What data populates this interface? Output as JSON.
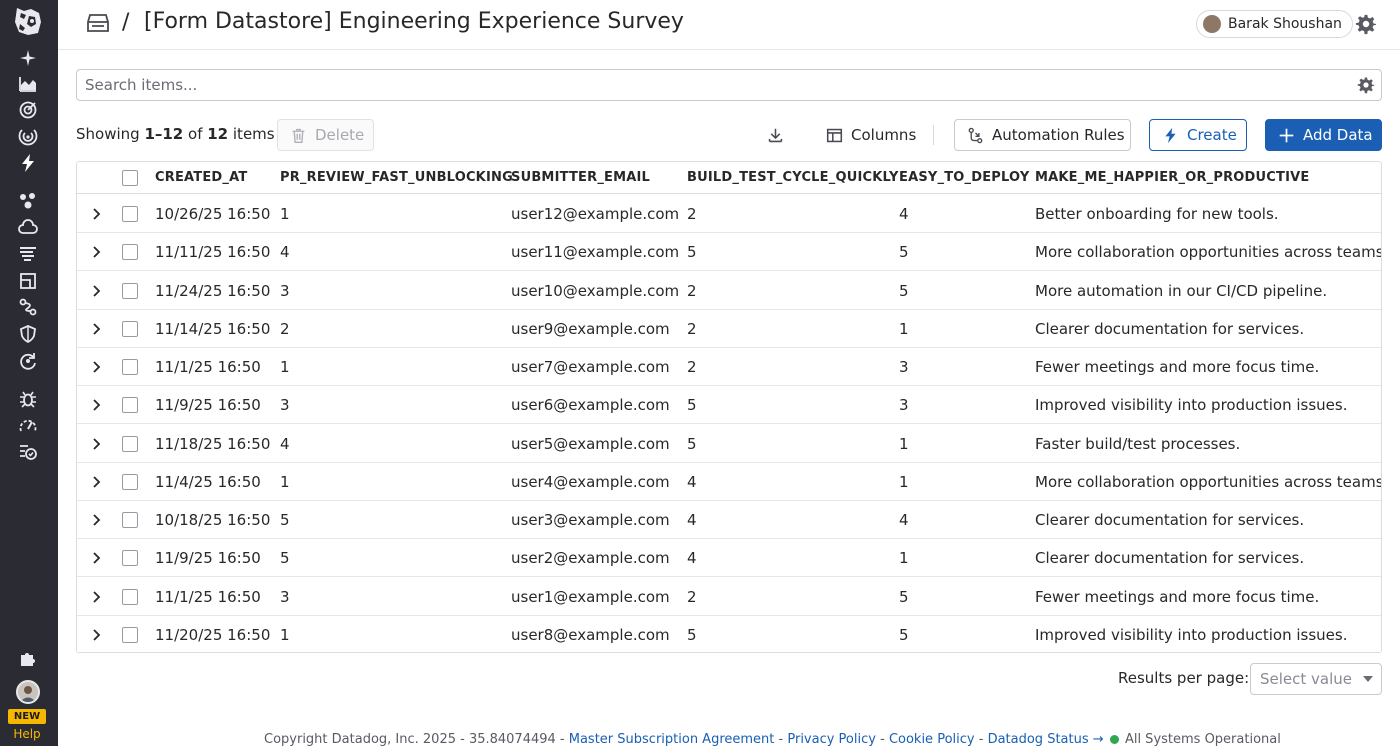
{
  "header": {
    "separator": "/",
    "title": "[Form Datastore] Engineering Experience Survey",
    "user_name": "Barak Shoushan"
  },
  "sidebar": {
    "new_badge": "NEW",
    "help_label": "Help",
    "icons": [
      "sparkle-icon",
      "area-chart-icon",
      "target-icon",
      "radar-icon",
      "bolt-icon",
      "network-icon",
      "cloud-icon",
      "logs-icon",
      "apm-icon",
      "route-icon",
      "shield-icon",
      "refresh-icon",
      "bug-icon",
      "speedometer-icon",
      "list-check-icon",
      "puzzle-icon"
    ]
  },
  "search": {
    "placeholder": "Search items..."
  },
  "toolbar": {
    "showing_prefix": "Showing ",
    "showing_range": "1–12",
    "showing_of": " of ",
    "showing_total": "12",
    "showing_suffix": " items",
    "delete_label": "Delete",
    "columns_label": "Columns",
    "automation_label": "Automation Rules",
    "create_label": "Create",
    "add_label": "Add Data"
  },
  "table": {
    "columns": [
      "CREATED_AT",
      "PR_REVIEW_FAST_UNBLOCKING",
      "SUBMITTER_EMAIL",
      "BUILD_TEST_CYCLE_QUICKLY",
      "EASY_TO_DEPLOY",
      "MAKE_ME_HAPPIER_OR_PRODUCTIVE"
    ],
    "rows": [
      [
        "10/26/25 16:50",
        "1",
        "user12@example.com",
        "2",
        "4",
        "Better onboarding for new tools."
      ],
      [
        "11/11/25 16:50",
        "4",
        "user11@example.com",
        "5",
        "5",
        "More collaboration opportunities across teams."
      ],
      [
        "11/24/25 16:50",
        "3",
        "user10@example.com",
        "2",
        "5",
        "More automation in our CI/CD pipeline."
      ],
      [
        "11/14/25 16:50",
        "2",
        "user9@example.com",
        "2",
        "1",
        "Clearer documentation for services."
      ],
      [
        "11/1/25 16:50",
        "1",
        "user7@example.com",
        "2",
        "3",
        "Fewer meetings and more focus time."
      ],
      [
        "11/9/25 16:50",
        "3",
        "user6@example.com",
        "5",
        "3",
        "Improved visibility into production issues."
      ],
      [
        "11/18/25 16:50",
        "4",
        "user5@example.com",
        "5",
        "1",
        "Faster build/test processes."
      ],
      [
        "11/4/25 16:50",
        "1",
        "user4@example.com",
        "4",
        "1",
        "More collaboration opportunities across teams."
      ],
      [
        "10/18/25 16:50",
        "5",
        "user3@example.com",
        "4",
        "4",
        "Clearer documentation for services."
      ],
      [
        "11/9/25 16:50",
        "5",
        "user2@example.com",
        "4",
        "1",
        "Clearer documentation for services."
      ],
      [
        "11/1/25 16:50",
        "3",
        "user1@example.com",
        "2",
        "5",
        "Fewer meetings and more focus time."
      ],
      [
        "11/20/25 16:50",
        "1",
        "user8@example.com",
        "5",
        "5",
        "Improved visibility into production issues."
      ]
    ]
  },
  "pagination": {
    "label": "Results per page:",
    "select_placeholder": "Select value"
  },
  "footer": {
    "copyright": "Copyright Datadog, Inc. 2025 - 35.84074494 - ",
    "link_msa": "Master Subscription Agreement",
    "sep": " - ",
    "link_privacy": "Privacy Policy",
    "link_cookie": "Cookie Policy",
    "link_status": "Datadog Status →",
    "status_text": "All Systems Operational"
  },
  "colors": {
    "sidebar_bg": "#2b2b33",
    "primary": "#1a5fb4",
    "new_badge": "#f5b700",
    "status_ok": "#2fa84f"
  }
}
